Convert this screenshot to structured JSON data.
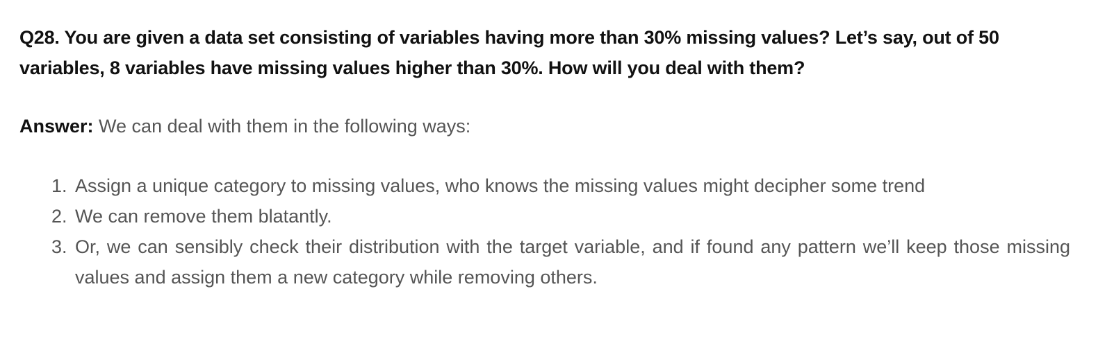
{
  "question": {
    "text": "Q28. You are given a data set consisting of variables having more than 30% missing values? Let’s say, out of 50 variables, 8 variables have missing values higher than 30%. How will you deal with them?"
  },
  "answer": {
    "label": "Answer:",
    "intro": " We can deal with them in the following ways:",
    "items": [
      {
        "number": "1.",
        "text": "Assign a unique category to missing values, who knows the missing values might decipher some trend"
      },
      {
        "number": "2.",
        "text": "We can remove them blatantly."
      },
      {
        "number": "3.",
        "text": "Or, we can sensibly check their distribution with the target variable, and if found any pattern we’ll keep those missing values and assign them a new category while removing others."
      }
    ]
  }
}
